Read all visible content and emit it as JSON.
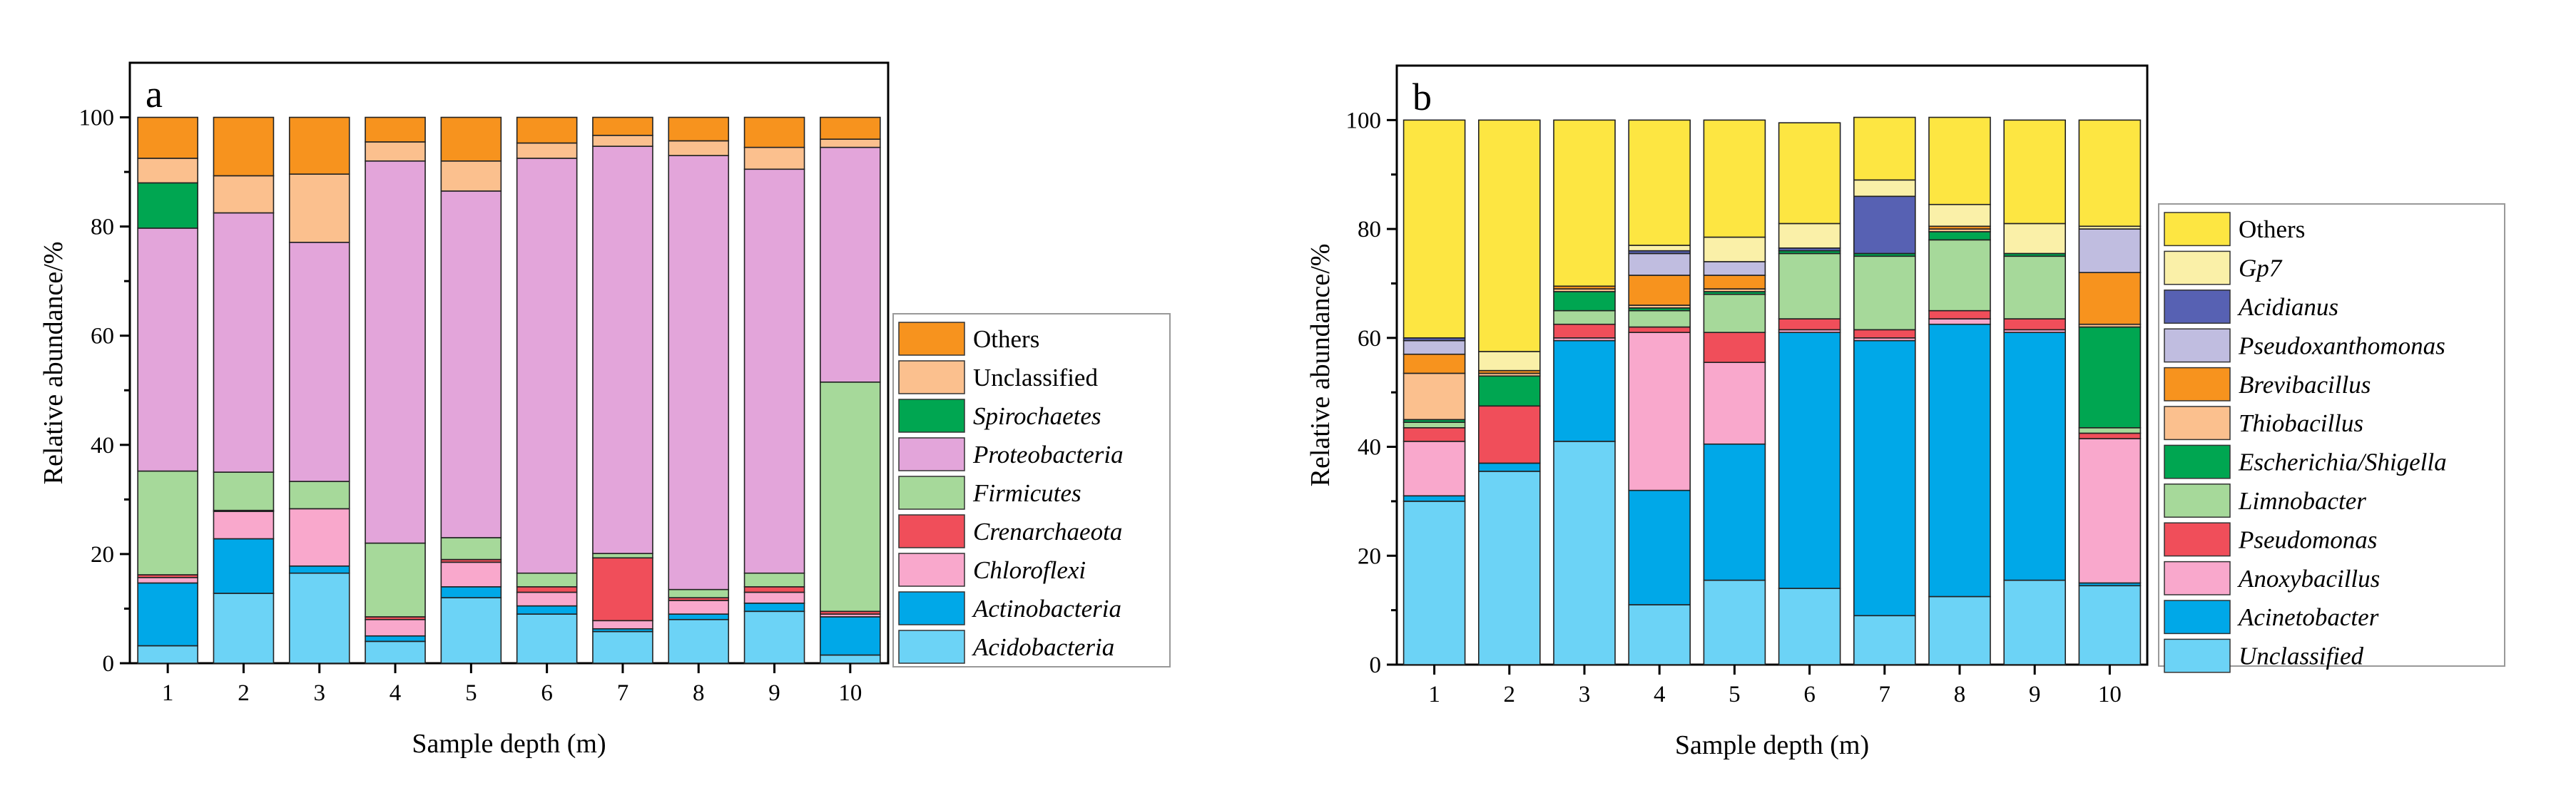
{
  "colors": {
    "orange": "#F7931E",
    "peach": "#FBC08E",
    "green": "#00A651",
    "purple": "#E3A5DA",
    "ltgreen": "#A6D99A",
    "red": "#F04E5A",
    "pink": "#F9A8CC",
    "blue": "#00A8E8",
    "ltblue": "#6CD3F6",
    "yellow": "#FDE642",
    "cream": "#FAF0A8",
    "navy": "#5761B3",
    "lavender": "#C0BDE0"
  },
  "chart_data": [
    {
      "type": "bar",
      "stacked": true,
      "panel_label": "a",
      "title": "",
      "xlabel": "Sample depth (m)",
      "ylabel": "Relative abundance/%",
      "ylim": [
        0,
        110
      ],
      "yticks": [
        "0",
        "20",
        "40",
        "60",
        "80",
        "100"
      ],
      "categories": [
        "1",
        "2",
        "3",
        "4",
        "5",
        "6",
        "7",
        "8",
        "9",
        "10"
      ],
      "legend_position": "right",
      "series": [
        {
          "name": "Acidobacteria",
          "italic": true,
          "color": "#6CD3F6",
          "values": [
            3.2,
            12.8,
            16.5,
            4.0,
            12.0,
            9.0,
            5.8,
            8.0,
            9.5,
            1.5
          ]
        },
        {
          "name": "Actinobacteria",
          "italic": true,
          "color": "#00A8E8",
          "values": [
            11.5,
            10.0,
            1.3,
            1.0,
            2.0,
            1.5,
            0.5,
            1.0,
            1.5,
            7.0
          ]
        },
        {
          "name": "Chloroflexi",
          "italic": true,
          "color": "#F9A8CC",
          "values": [
            1.0,
            5.0,
            10.5,
            3.0,
            4.5,
            2.5,
            1.5,
            2.5,
            2.0,
            0.5
          ]
        },
        {
          "name": "Crenarchaeota",
          "italic": true,
          "color": "#F04E5A",
          "values": [
            0.5,
            0.2,
            0.0,
            0.5,
            0.5,
            1.0,
            11.5,
            0.5,
            1.0,
            0.5
          ]
        },
        {
          "name": "Firmicutes",
          "italic": true,
          "color": "#A6D99A",
          "values": [
            19.0,
            7.0,
            5.0,
            13.5,
            4.0,
            2.5,
            0.8,
            1.5,
            2.5,
            42.0
          ]
        },
        {
          "name": "Proteobacteria",
          "italic": true,
          "color": "#E3A5DA",
          "values": [
            44.5,
            47.5,
            43.8,
            70.0,
            63.5,
            76.0,
            74.6,
            79.5,
            74.0,
            43.0
          ]
        },
        {
          "name": "Spirochaetes",
          "italic": true,
          "color": "#00A651",
          "values": [
            8.3,
            0.0,
            0.0,
            0.0,
            0.0,
            0.0,
            0.0,
            0.0,
            0.0,
            0.0
          ]
        },
        {
          "name": "Unclassified",
          "italic": false,
          "color": "#FBC08E",
          "values": [
            4.5,
            6.8,
            12.5,
            3.5,
            5.5,
            2.8,
            2.0,
            2.7,
            4.0,
            1.5
          ]
        },
        {
          "name": "Others",
          "italic": false,
          "color": "#F7931E",
          "values": [
            7.5,
            10.7,
            10.4,
            4.5,
            8.0,
            4.7,
            3.3,
            4.3,
            5.5,
            4.0
          ]
        }
      ]
    },
    {
      "type": "bar",
      "stacked": true,
      "panel_label": "b",
      "title": "",
      "xlabel": "Sample depth (m)",
      "ylabel": "Relative abundance/%",
      "ylim": [
        0,
        110
      ],
      "yticks": [
        "0",
        "20",
        "40",
        "60",
        "80",
        "100"
      ],
      "categories": [
        "1",
        "2",
        "3",
        "4",
        "5",
        "6",
        "7",
        "8",
        "9",
        "10"
      ],
      "legend_position": "right",
      "series": [
        {
          "name": "Unclassified",
          "italic": true,
          "color": "#6CD3F6",
          "values": [
            30.0,
            35.5,
            41.0,
            11.0,
            15.5,
            14.0,
            9.0,
            12.5,
            15.5,
            14.5
          ]
        },
        {
          "name": "Acinetobacter",
          "italic": true,
          "color": "#00A8E8",
          "values": [
            1.0,
            1.5,
            18.5,
            21.0,
            25.0,
            47.0,
            50.5,
            50.0,
            45.5,
            0.5
          ]
        },
        {
          "name": "Anoxybacillus",
          "italic": true,
          "color": "#F9A8CC",
          "values": [
            10.0,
            0.0,
            0.5,
            29.0,
            15.0,
            0.5,
            0.5,
            1.0,
            0.5,
            26.5
          ]
        },
        {
          "name": "Pseudomonas",
          "italic": true,
          "color": "#F04E5A",
          "values": [
            2.5,
            10.5,
            2.5,
            1.0,
            5.5,
            2.0,
            1.5,
            1.5,
            2.0,
            1.0
          ]
        },
        {
          "name": "Limnobacter",
          "italic": true,
          "color": "#A6D99A",
          "values": [
            1.0,
            0.0,
            2.5,
            3.0,
            7.0,
            12.0,
            13.5,
            13.0,
            11.5,
            1.0
          ]
        },
        {
          "name": "Escherichia/Shigella",
          "italic": true,
          "color": "#00A651",
          "values": [
            0.5,
            5.5,
            3.5,
            0.5,
            0.5,
            0.5,
            0.5,
            1.5,
            0.5,
            18.5
          ]
        },
        {
          "name": "Thiobacillus",
          "italic": true,
          "color": "#FBC08E",
          "values": [
            8.5,
            0.5,
            0.5,
            0.5,
            0.5,
            0.0,
            0.0,
            0.5,
            0.0,
            0.5
          ]
        },
        {
          "name": "Brevibacillus",
          "italic": true,
          "color": "#F7931E",
          "values": [
            3.5,
            0.5,
            0.5,
            5.5,
            2.5,
            0.0,
            0.0,
            0.5,
            0.0,
            9.5
          ]
        },
        {
          "name": "Pseudoxanthomonas",
          "italic": true,
          "color": "#C0BDE0",
          "values": [
            2.5,
            0.0,
            0.0,
            4.0,
            2.5,
            0.0,
            0.0,
            0.0,
            0.0,
            8.0
          ]
        },
        {
          "name": "Acidianus",
          "italic": true,
          "color": "#5761B3",
          "values": [
            0.5,
            0.0,
            0.0,
            0.5,
            0.0,
            0.5,
            10.5,
            0.0,
            0.0,
            0.0
          ]
        },
        {
          "name": "Gp7",
          "italic": true,
          "color": "#FAF0A8",
          "values": [
            0.0,
            3.5,
            0.0,
            1.0,
            4.5,
            4.5,
            3.0,
            4.0,
            5.5,
            0.5
          ]
        },
        {
          "name": "Others",
          "italic": false,
          "color": "#FDE642",
          "values": [
            40.0,
            42.5,
            30.5,
            23.0,
            21.5,
            18.5,
            11.5,
            16.0,
            19.0,
            19.5
          ]
        }
      ]
    }
  ]
}
